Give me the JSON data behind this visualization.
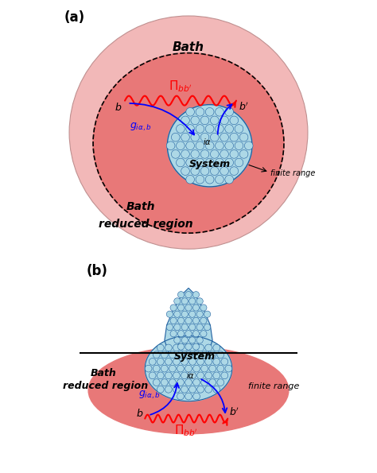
{
  "bg_color": "#ffffff",
  "panel_a": {
    "label": "(a)",
    "bath_outer_color": "#f2b8b8",
    "bath_reduced_color": "#e87878",
    "system_color": "#add8e6",
    "system_edge_color": "#2060a0",
    "bath_label": "Bath",
    "bath_reduced_label1": "Bath",
    "bath_reduced_label2": "reduced region",
    "system_label": "System",
    "finite_range_label": "finite range"
  },
  "panel_b": {
    "label": "(b)",
    "bath_reduced_color": "#e87878",
    "system_color": "#add8e6",
    "system_edge_color": "#2060a0",
    "bath_reduced_label1": "Bath",
    "bath_reduced_label2": "reduced region",
    "system_label": "System",
    "finite_range_label": "finite range"
  }
}
